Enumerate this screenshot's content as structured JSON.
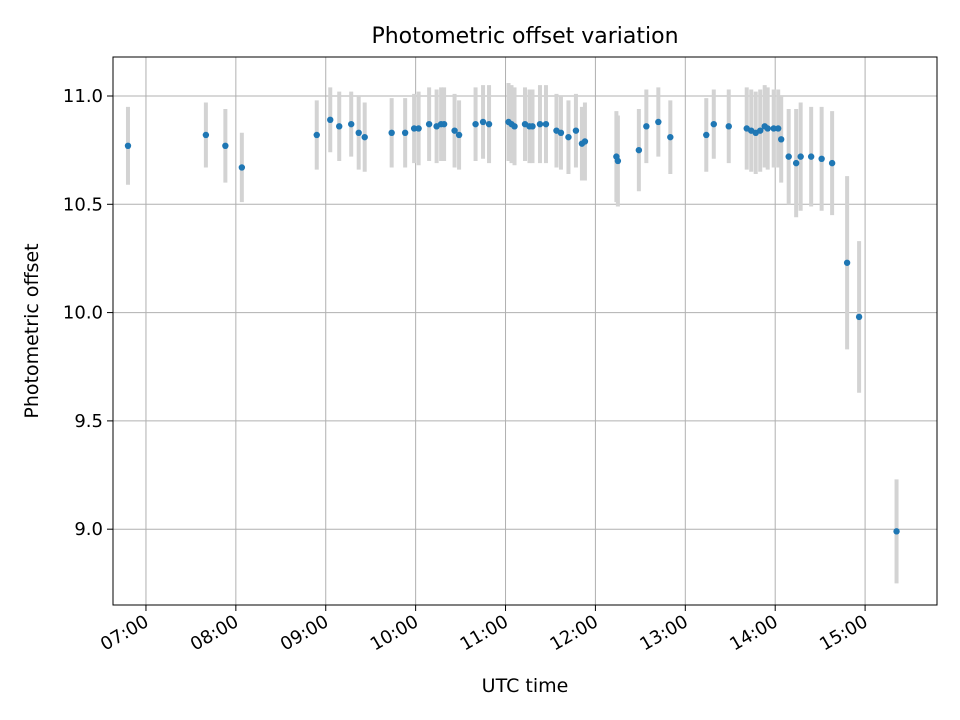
{
  "chart_data": {
    "type": "scatter",
    "title": "Photometric offset variation",
    "xlabel": "UTC time",
    "ylabel": "Photometric offset",
    "grid": true,
    "xlim": [
      "06:38",
      "15:48"
    ],
    "ylim": [
      8.65,
      11.18
    ],
    "x_ticks": [
      "07:00",
      "08:00",
      "09:00",
      "10:00",
      "11:00",
      "12:00",
      "13:00",
      "14:00",
      "15:00"
    ],
    "y_ticks": [
      9.0,
      9.5,
      10.0,
      10.5,
      11.0
    ],
    "y_tick_labels": [
      "9.0",
      "9.5",
      "10.0",
      "10.5",
      "11.0"
    ],
    "colors": {
      "marker": "#1f77b4",
      "errorbar": "#d3d3d3",
      "grid": "#b0b0b0"
    },
    "series": [
      {
        "x": [
          "06:48",
          "07:40",
          "07:53",
          "08:04",
          "08:54",
          "09:03",
          "09:09",
          "09:17",
          "09:22",
          "09:26",
          "09:44",
          "09:53",
          "09:59",
          "10:02",
          "10:09",
          "10:14",
          "10:17",
          "10:19",
          "10:26",
          "10:29",
          "10:40",
          "10:45",
          "10:49",
          "11:02",
          "11:04",
          "11:06",
          "11:13",
          "11:16",
          "11:18",
          "11:23",
          "11:27",
          "11:34",
          "11:37",
          "11:42",
          "11:47",
          "11:51",
          "11:53",
          "12:14",
          "12:15",
          "12:29",
          "12:34",
          "12:42",
          "12:50",
          "13:14",
          "13:19",
          "13:29",
          "13:41",
          "13:44",
          "13:47",
          "13:50",
          "13:53",
          "13:55",
          "13:59",
          "14:02",
          "14:04",
          "14:09",
          "14:14",
          "14:17",
          "14:24",
          "14:31",
          "14:38",
          "14:48",
          "14:56",
          "15:21"
        ],
        "y": [
          10.77,
          10.82,
          10.77,
          10.67,
          10.82,
          10.89,
          10.86,
          10.87,
          10.83,
          10.81,
          10.83,
          10.83,
          10.85,
          10.85,
          10.87,
          10.86,
          10.87,
          10.87,
          10.84,
          10.82,
          10.87,
          10.88,
          10.87,
          10.88,
          10.87,
          10.86,
          10.87,
          10.86,
          10.86,
          10.87,
          10.87,
          10.84,
          10.83,
          10.81,
          10.84,
          10.78,
          10.79,
          10.72,
          10.7,
          10.75,
          10.86,
          10.88,
          10.81,
          10.82,
          10.87,
          10.86,
          10.85,
          10.84,
          10.83,
          10.84,
          10.86,
          10.85,
          10.85,
          10.85,
          10.8,
          10.72,
          10.69,
          10.72,
          10.72,
          10.71,
          10.69,
          10.23,
          9.98,
          8.99
        ],
        "yerr": [
          0.18,
          0.15,
          0.17,
          0.16,
          0.16,
          0.15,
          0.16,
          0.15,
          0.17,
          0.16,
          0.16,
          0.16,
          0.16,
          0.17,
          0.17,
          0.17,
          0.17,
          0.17,
          0.17,
          0.16,
          0.17,
          0.17,
          0.18,
          0.18,
          0.18,
          0.18,
          0.17,
          0.17,
          0.17,
          0.18,
          0.18,
          0.17,
          0.17,
          0.17,
          0.17,
          0.17,
          0.18,
          0.21,
          0.21,
          0.19,
          0.17,
          0.16,
          0.17,
          0.17,
          0.16,
          0.17,
          0.19,
          0.19,
          0.19,
          0.19,
          0.19,
          0.19,
          0.18,
          0.18,
          0.2,
          0.22,
          0.25,
          0.25,
          0.23,
          0.24,
          0.24,
          0.4,
          0.35,
          0.24
        ]
      }
    ]
  }
}
